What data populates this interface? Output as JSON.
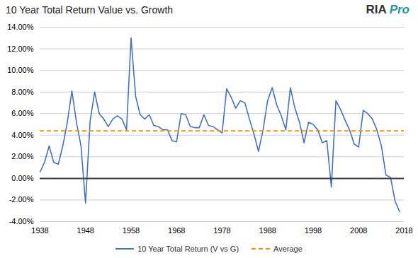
{
  "chart_data": {
    "type": "line",
    "title": "10 Year Total Return Value vs. Growth",
    "x": [
      1938,
      1939,
      1940,
      1941,
      1942,
      1943,
      1944,
      1945,
      1946,
      1947,
      1948,
      1949,
      1950,
      1951,
      1952,
      1953,
      1954,
      1955,
      1956,
      1957,
      1958,
      1959,
      1960,
      1961,
      1962,
      1963,
      1964,
      1965,
      1966,
      1967,
      1968,
      1969,
      1970,
      1971,
      1972,
      1973,
      1974,
      1975,
      1976,
      1977,
      1978,
      1979,
      1980,
      1981,
      1982,
      1983,
      1984,
      1985,
      1986,
      1987,
      1988,
      1989,
      1990,
      1991,
      1992,
      1993,
      1994,
      1995,
      1996,
      1997,
      1998,
      1999,
      2000,
      2001,
      2002,
      2003,
      2004,
      2005,
      2006,
      2007,
      2008,
      2009,
      2010,
      2011,
      2012,
      2013,
      2014,
      2015,
      2016,
      2017
    ],
    "series": [
      {
        "name": "10 Year Total Return (V vs G)",
        "color": "#4472C4",
        "line_style": "solid",
        "values": [
          0.006,
          0.015,
          0.03,
          0.015,
          0.013,
          0.03,
          0.052,
          0.081,
          0.052,
          0.03,
          -0.023,
          0.053,
          0.08,
          0.06,
          0.055,
          0.048,
          0.055,
          0.058,
          0.055,
          0.045,
          0.13,
          0.076,
          0.059,
          0.055,
          0.059,
          0.049,
          0.048,
          0.045,
          0.045,
          0.035,
          0.034,
          0.06,
          0.059,
          0.048,
          0.047,
          0.047,
          0.059,
          0.049,
          0.048,
          0.045,
          0.042,
          0.083,
          0.075,
          0.065,
          0.072,
          0.07,
          0.055,
          0.041,
          0.025,
          0.045,
          0.072,
          0.084,
          0.068,
          0.058,
          0.045,
          0.084,
          0.065,
          0.052,
          0.033,
          0.052,
          0.05,
          0.045,
          0.033,
          0.035,
          -0.008,
          0.072,
          0.064,
          0.054,
          0.045,
          0.032,
          0.029,
          0.063,
          0.06,
          0.055,
          0.045,
          0.03,
          0.003,
          0.001,
          -0.021,
          -0.031
        ]
      }
    ],
    "reference_lines": [
      {
        "name": "Average",
        "value": 0.044,
        "color": "#FF8C00",
        "line_style": "dashed"
      },
      {
        "value": 0,
        "color": "#404040",
        "line_style": "solid"
      }
    ],
    "xlim": [
      1938,
      2018
    ],
    "xticks": [
      1938,
      1948,
      1958,
      1968,
      1978,
      1988,
      1998,
      2008,
      2018
    ],
    "ylim": [
      -0.04,
      0.14
    ],
    "yticks": [
      {
        "value": -0.04,
        "label": "-4.00%"
      },
      {
        "value": -0.02,
        "label": "-2.00%"
      },
      {
        "value": 0.0,
        "label": "0.00%"
      },
      {
        "value": 0.02,
        "label": "2.00%"
      },
      {
        "value": 0.04,
        "label": "4.00%"
      },
      {
        "value": 0.06,
        "label": "6.00%"
      },
      {
        "value": 0.08,
        "label": "8.00%"
      },
      {
        "value": 0.1,
        "label": "10.00%"
      },
      {
        "value": 0.12,
        "label": "12.00%"
      },
      {
        "value": 0.14,
        "label": "14.00%"
      }
    ],
    "grid": "y",
    "legend": "bottom",
    "annotations": [
      {
        "text": "RIA",
        "color": "#333333"
      },
      {
        "text": "Pro",
        "color": "#2196A6"
      }
    ]
  }
}
